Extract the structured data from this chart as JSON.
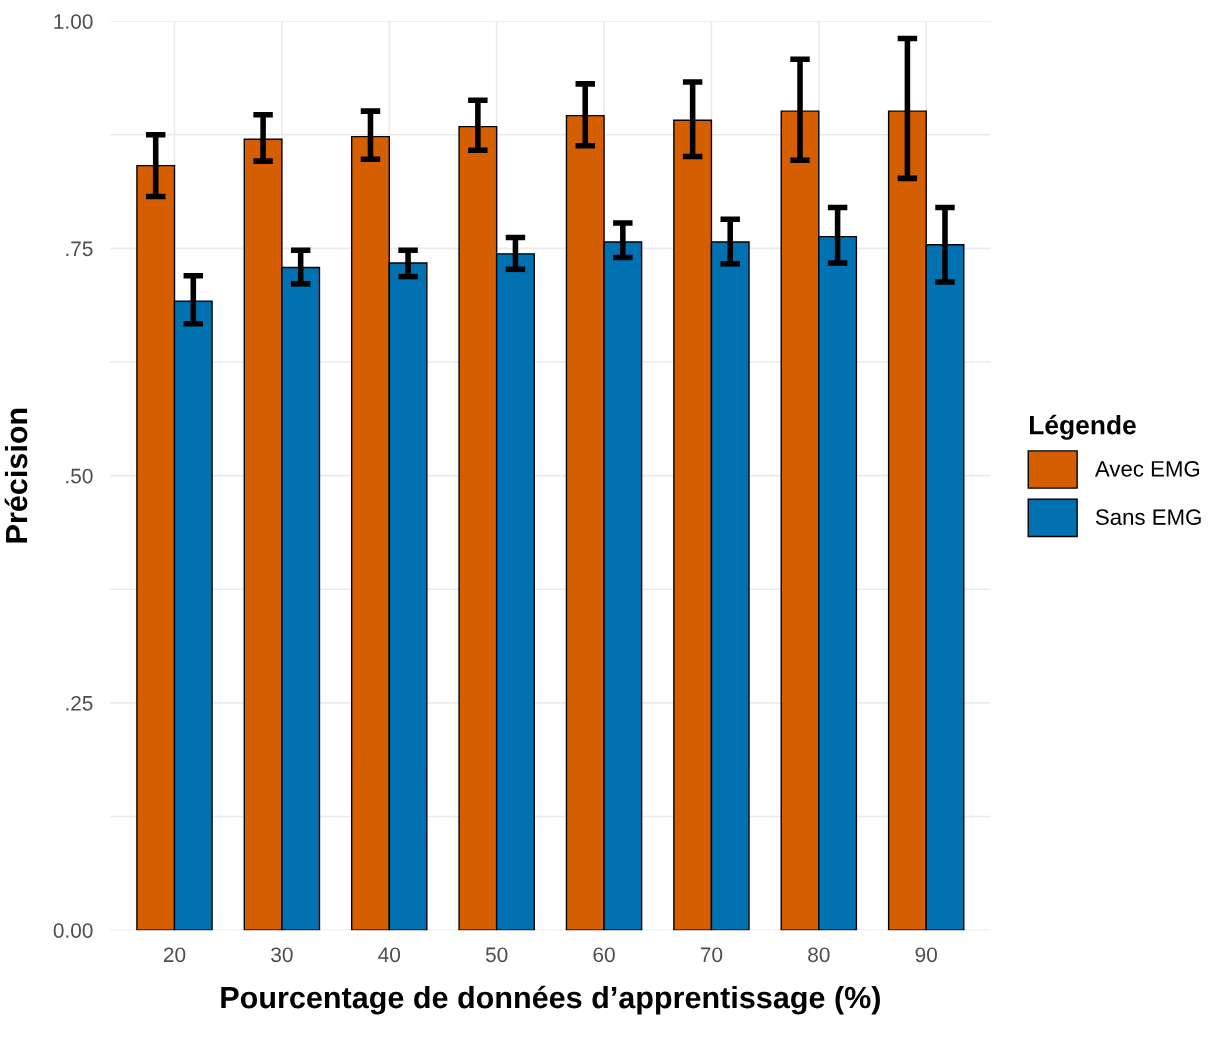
{
  "chart_data": {
    "type": "bar",
    "xlabel": "Pourcentage de données d’apprentissage (%)",
    "ylabel": "Précision",
    "legend_title": "Légende",
    "categories": [
      "20",
      "30",
      "40",
      "50",
      "60",
      "70",
      "80",
      "90"
    ],
    "series": [
      {
        "name": "Avec EMG",
        "color": "#d55e00",
        "values": [
          0.841,
          0.87,
          0.873,
          0.884,
          0.896,
          0.891,
          0.901,
          0.901
        ],
        "errors": [
          [
            0.807,
            0.875
          ],
          [
            0.846,
            0.897
          ],
          [
            0.848,
            0.901
          ],
          [
            0.858,
            0.913
          ],
          [
            0.863,
            0.931
          ],
          [
            0.851,
            0.933
          ],
          [
            0.847,
            0.958
          ],
          [
            0.827,
            0.981
          ]
        ]
      },
      {
        "name": "Sans EMG",
        "color": "#0072b2",
        "values": [
          0.692,
          0.729,
          0.734,
          0.744,
          0.757,
          0.757,
          0.763,
          0.754
        ],
        "errors": [
          [
            0.667,
            0.72
          ],
          [
            0.711,
            0.748
          ],
          [
            0.719,
            0.748
          ],
          [
            0.727,
            0.762
          ],
          [
            0.74,
            0.778
          ],
          [
            0.733,
            0.782
          ],
          [
            0.734,
            0.795
          ],
          [
            0.713,
            0.795
          ]
        ]
      }
    ],
    "ylim": [
      0,
      1.0
    ],
    "yticks": [
      {
        "value": 0,
        "label": "0.00"
      },
      {
        "value": 0.125,
        "label": null
      },
      {
        "value": 0.25,
        "label": ".25"
      },
      {
        "value": 0.375,
        "label": null
      },
      {
        "value": 0.5,
        "label": ".50"
      },
      {
        "value": 0.625,
        "label": null
      },
      {
        "value": 0.75,
        "label": ".75"
      },
      {
        "value": 0.875,
        "label": null
      },
      {
        "value": 1.0,
        "label": "1.00"
      }
    ],
    "grid": true,
    "legend": "right"
  }
}
